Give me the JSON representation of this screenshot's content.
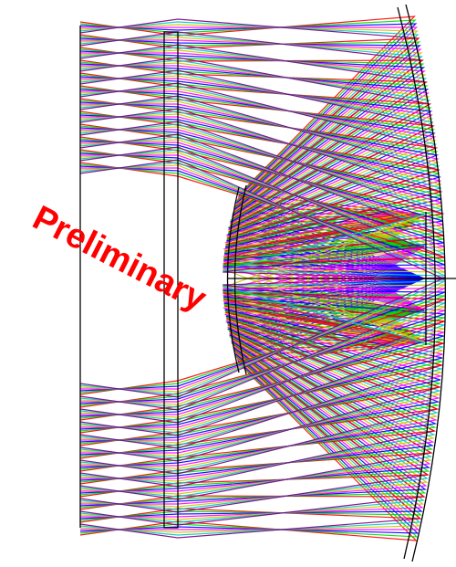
{
  "watermark": "Preliminary"
}
